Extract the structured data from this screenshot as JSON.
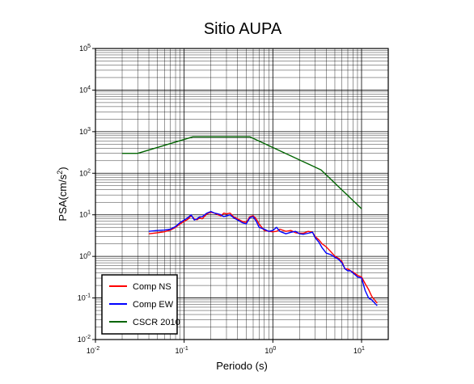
{
  "chart_data": {
    "type": "line",
    "title": "Sitio AUPA",
    "xlabel": "Periodo (s)",
    "ylabel": "PSA(cm/s",
    "ylabel_exp": "2",
    "ylabel_end": ")",
    "x_scale": "log",
    "y_scale": "log",
    "xlim": [
      0.01,
      20
    ],
    "ylim": [
      0.01,
      100000
    ],
    "grid": true,
    "legend_position": "bottom-left",
    "x_ticks": [
      {
        "base": "10",
        "exp": "-2",
        "value": 0.01
      },
      {
        "base": "10",
        "exp": "-1",
        "value": 0.1
      },
      {
        "base": "10",
        "exp": "0",
        "value": 1
      },
      {
        "base": "10",
        "exp": "1",
        "value": 10
      }
    ],
    "y_ticks": [
      {
        "base": "10",
        "exp": "-2",
        "value": 0.01
      },
      {
        "base": "10",
        "exp": "-1",
        "value": 0.1
      },
      {
        "base": "10",
        "exp": "0",
        "value": 1
      },
      {
        "base": "10",
        "exp": "1",
        "value": 10
      },
      {
        "base": "10",
        "exp": "2",
        "value": 100
      },
      {
        "base": "10",
        "exp": "3",
        "value": 1000
      },
      {
        "base": "10",
        "exp": "4",
        "value": 10000
      },
      {
        "base": "10",
        "exp": "5",
        "value": 100000
      }
    ],
    "series": [
      {
        "name": "Comp NS",
        "color": "#ff0000",
        "x": [
          0.04,
          0.05,
          0.06,
          0.07,
          0.08,
          0.09,
          0.1,
          0.11,
          0.12,
          0.13,
          0.14,
          0.15,
          0.16,
          0.18,
          0.2,
          0.22,
          0.24,
          0.26,
          0.28,
          0.3,
          0.33,
          0.36,
          0.4,
          0.45,
          0.5,
          0.55,
          0.6,
          0.65,
          0.7,
          0.8,
          0.9,
          1.0,
          1.1,
          1.2,
          1.4,
          1.6,
          1.8,
          2.0,
          2.2,
          2.5,
          2.8,
          3.0,
          3.3,
          3.6,
          4.0,
          4.5,
          5.0,
          5.5,
          6.0,
          6.5,
          7.0,
          7.5,
          8.0,
          9.0,
          10.0,
          11.0,
          12.0,
          13.0,
          15.0
        ],
        "y": [
          3.5,
          3.7,
          3.9,
          4.3,
          5.0,
          6.0,
          7.0,
          7.8,
          9.5,
          8.0,
          7.6,
          8.5,
          8.0,
          10.5,
          11.5,
          11.0,
          10.0,
          9.5,
          11.0,
          10.5,
          11.0,
          9.0,
          8.0,
          7.0,
          6.5,
          9.0,
          9.5,
          8.0,
          6.0,
          4.2,
          4.0,
          3.9,
          4.0,
          4.5,
          4.0,
          4.2,
          3.7,
          3.6,
          3.6,
          4.0,
          3.8,
          3.0,
          2.5,
          2.0,
          1.7,
          1.3,
          1.0,
          0.9,
          0.75,
          0.5,
          0.5,
          0.45,
          0.42,
          0.35,
          0.32,
          0.22,
          0.16,
          0.11,
          0.075
        ]
      },
      {
        "name": "Comp EW",
        "color": "#0000ff",
        "x": [
          0.04,
          0.05,
          0.06,
          0.07,
          0.08,
          0.09,
          0.1,
          0.11,
          0.12,
          0.13,
          0.14,
          0.15,
          0.16,
          0.18,
          0.2,
          0.22,
          0.24,
          0.26,
          0.28,
          0.3,
          0.33,
          0.36,
          0.4,
          0.45,
          0.5,
          0.55,
          0.6,
          0.65,
          0.7,
          0.8,
          0.9,
          1.0,
          1.1,
          1.2,
          1.4,
          1.6,
          1.8,
          2.0,
          2.2,
          2.5,
          2.8,
          3.0,
          3.3,
          3.6,
          4.0,
          4.5,
          5.0,
          5.5,
          6.0,
          6.5,
          7.0,
          7.5,
          8.0,
          9.0,
          10.0,
          11.0,
          12.0,
          13.0,
          15.0
        ],
        "y": [
          4.0,
          4.2,
          4.3,
          4.5,
          5.2,
          6.5,
          7.5,
          8.5,
          10.0,
          7.5,
          8.0,
          9.0,
          9.0,
          11.0,
          12.0,
          11.0,
          10.5,
          10.0,
          9.0,
          9.5,
          10.0,
          8.5,
          7.5,
          6.5,
          6.0,
          8.5,
          9.0,
          7.0,
          5.0,
          4.5,
          4.0,
          4.2,
          5.0,
          4.0,
          3.5,
          3.8,
          4.0,
          3.5,
          3.4,
          3.6,
          3.8,
          2.8,
          2.2,
          1.6,
          1.2,
          1.1,
          0.95,
          0.85,
          0.7,
          0.5,
          0.45,
          0.45,
          0.4,
          0.32,
          0.3,
          0.15,
          0.1,
          0.09,
          0.065
        ]
      },
      {
        "name": "CSCR 2010",
        "color": "#006400",
        "x": [
          0.02,
          0.03,
          0.125,
          0.55,
          3.5,
          10.0
        ],
        "y": [
          300,
          300,
          750,
          750,
          120,
          14
        ]
      }
    ]
  }
}
